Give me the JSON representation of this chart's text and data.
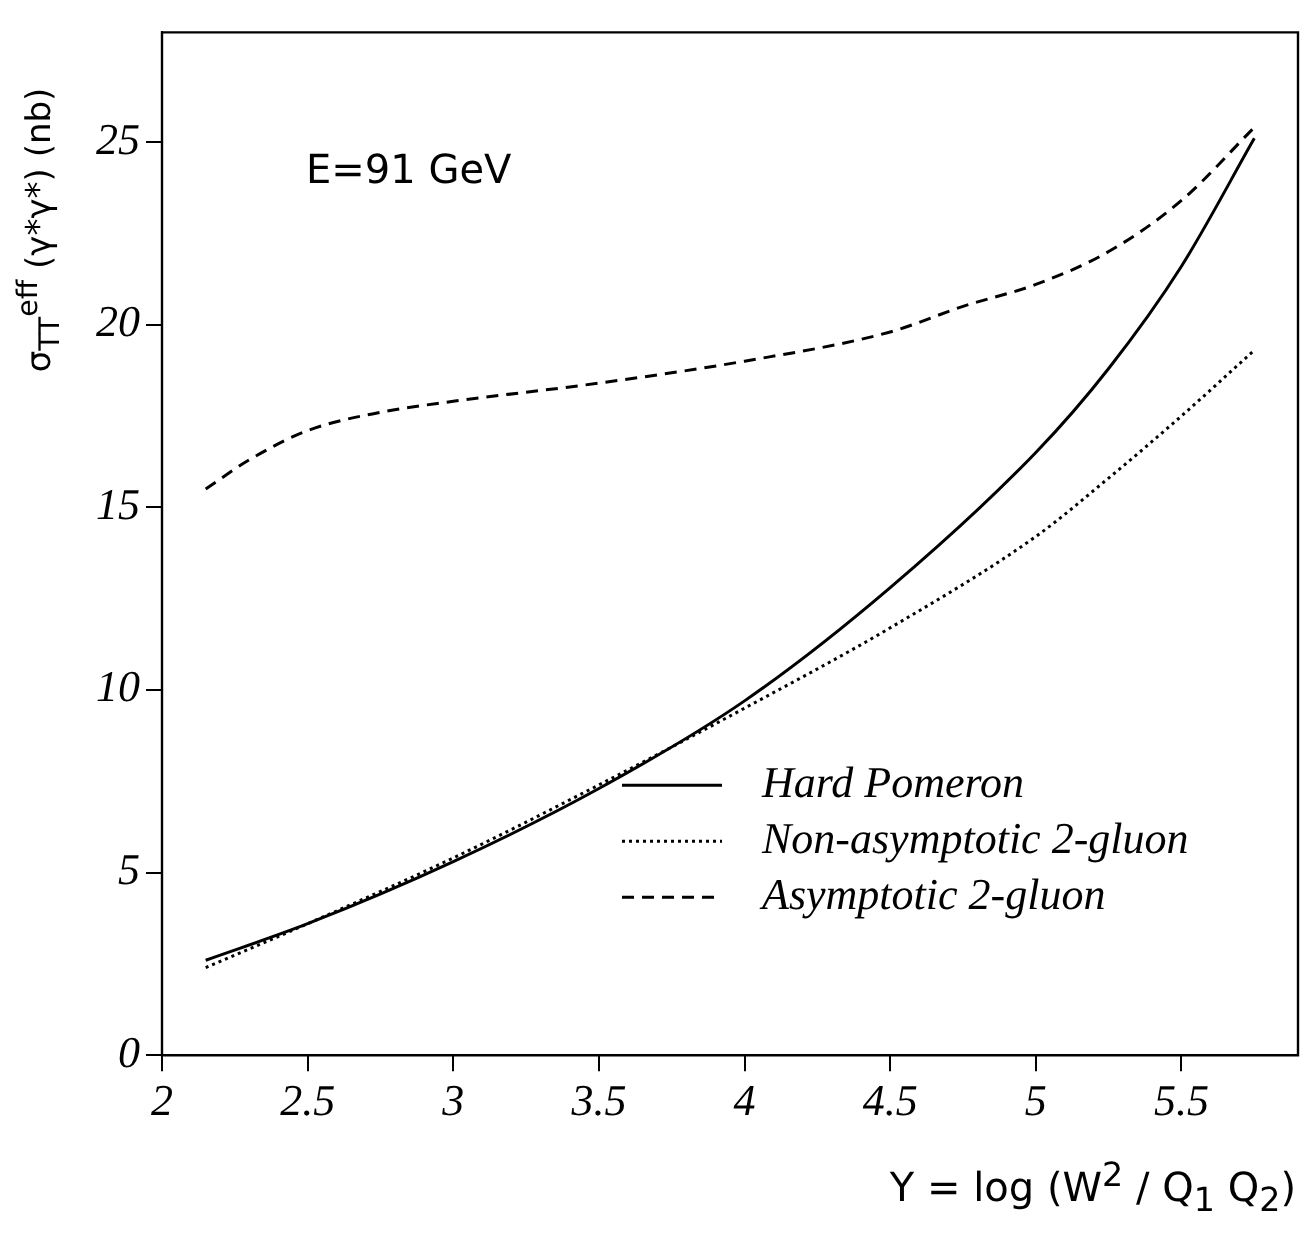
{
  "chart_data": {
    "type": "line",
    "xlabel": "Y = log (W$^{2}$ / Q$_{1}$ Q$_{2}$)",
    "ylabel": "σ$_{TT}$$^{eff}$ (γ*γ*) (nb)",
    "annotations": [
      "E=91 GeV"
    ],
    "xlim": [
      2,
      5.9
    ],
    "xticks": [
      2,
      2.5,
      3,
      3.5,
      4,
      4.5,
      5,
      5.5
    ],
    "ylim": [
      0,
      28
    ],
    "yticks": [
      0,
      5,
      10,
      15,
      20,
      25
    ],
    "grid": false,
    "legend": "bottom right",
    "marker": "none",
    "series": [
      {
        "name": "Hard Pomeron",
        "color": "#000000",
        "line_style": "solid",
        "x": [
          2.15,
          2.5,
          3,
          3.5,
          4,
          4.5,
          5,
          5.25,
          5.5,
          5.75
        ],
        "values": [
          2.6,
          3.6,
          5.3,
          7.3,
          9.7,
          12.8,
          16.5,
          18.8,
          21.6,
          25.1
        ]
      },
      {
        "name": "Non-asymptotic 2-gluon",
        "color": "#000000",
        "line_style": "dotted",
        "x": [
          2.15,
          2.5,
          3,
          3.5,
          4,
          4.5,
          5,
          5.25,
          5.5,
          5.75
        ],
        "values": [
          2.4,
          3.6,
          5.4,
          7.4,
          9.5,
          11.7,
          14.2,
          15.8,
          17.5,
          19.3
        ]
      },
      {
        "name": "Asymptotic 2-gluon",
        "color": "#000000",
        "line_style": "dashed",
        "x": [
          2.15,
          2.3,
          2.5,
          2.75,
          3,
          3.5,
          4,
          4.5,
          4.75,
          5,
          5.25,
          5.5,
          5.75
        ],
        "values": [
          15.5,
          16.3,
          17.1,
          17.6,
          17.9,
          18.4,
          19.0,
          19.8,
          20.5,
          21.1,
          22.0,
          23.4,
          25.4
        ]
      }
    ]
  }
}
